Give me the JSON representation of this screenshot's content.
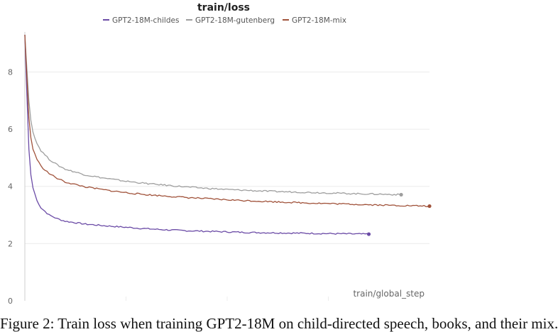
{
  "colors": {
    "GPT2-18M-childes": "#6b4ba6",
    "GPT2-18M-gutenberg": "#9e9e9e",
    "GPT2-18M-mix": "#a0523a",
    "grid": "#ececec",
    "axis": "#cfcfcf"
  },
  "caption": "Figure 2: Train loss when training GPT2-18M on child-directed speech, books, and their mix.",
  "chart_data": {
    "type": "line",
    "title": "train/loss",
    "xlabel": "train/global_step",
    "ylabel": "",
    "xlim": [
      0,
      1
    ],
    "ylim": [
      0,
      9.4
    ],
    "yticks": [
      0,
      2,
      4,
      6,
      8
    ],
    "grid": true,
    "legend": "top-center",
    "series": [
      {
        "name": "GPT2-18M-childes",
        "x": [
          0,
          0.005,
          0.01,
          0.015,
          0.02,
          0.03,
          0.04,
          0.06,
          0.08,
          0.1,
          0.15,
          0.2,
          0.25,
          0.3,
          0.35,
          0.4,
          0.45,
          0.5,
          0.55,
          0.6,
          0.7,
          0.8,
          0.85
        ],
        "y": [
          9.3,
          7.2,
          5.3,
          4.4,
          3.95,
          3.5,
          3.25,
          3.0,
          2.87,
          2.78,
          2.68,
          2.62,
          2.57,
          2.52,
          2.48,
          2.45,
          2.43,
          2.41,
          2.39,
          2.38,
          2.36,
          2.34,
          2.33
        ]
      },
      {
        "name": "GPT2-18M-gutenberg",
        "x": [
          0,
          0.005,
          0.01,
          0.015,
          0.02,
          0.03,
          0.04,
          0.06,
          0.08,
          0.1,
          0.15,
          0.2,
          0.25,
          0.3,
          0.35,
          0.4,
          0.45,
          0.5,
          0.55,
          0.6,
          0.7,
          0.8,
          0.9,
          0.93
        ],
        "y": [
          9.3,
          8.1,
          7.0,
          6.3,
          5.9,
          5.5,
          5.25,
          4.95,
          4.75,
          4.6,
          4.4,
          4.28,
          4.18,
          4.1,
          4.04,
          3.98,
          3.93,
          3.89,
          3.86,
          3.83,
          3.79,
          3.75,
          3.72,
          3.71
        ]
      },
      {
        "name": "GPT2-18M-mix",
        "x": [
          0,
          0.005,
          0.01,
          0.015,
          0.02,
          0.03,
          0.04,
          0.06,
          0.08,
          0.1,
          0.15,
          0.2,
          0.25,
          0.3,
          0.35,
          0.4,
          0.45,
          0.5,
          0.55,
          0.6,
          0.7,
          0.8,
          0.9,
          1.0
        ],
        "y": [
          9.3,
          7.8,
          6.4,
          5.7,
          5.3,
          4.95,
          4.7,
          4.45,
          4.28,
          4.15,
          3.98,
          3.87,
          3.78,
          3.71,
          3.66,
          3.61,
          3.57,
          3.53,
          3.5,
          3.47,
          3.42,
          3.38,
          3.34,
          3.31
        ]
      }
    ]
  }
}
